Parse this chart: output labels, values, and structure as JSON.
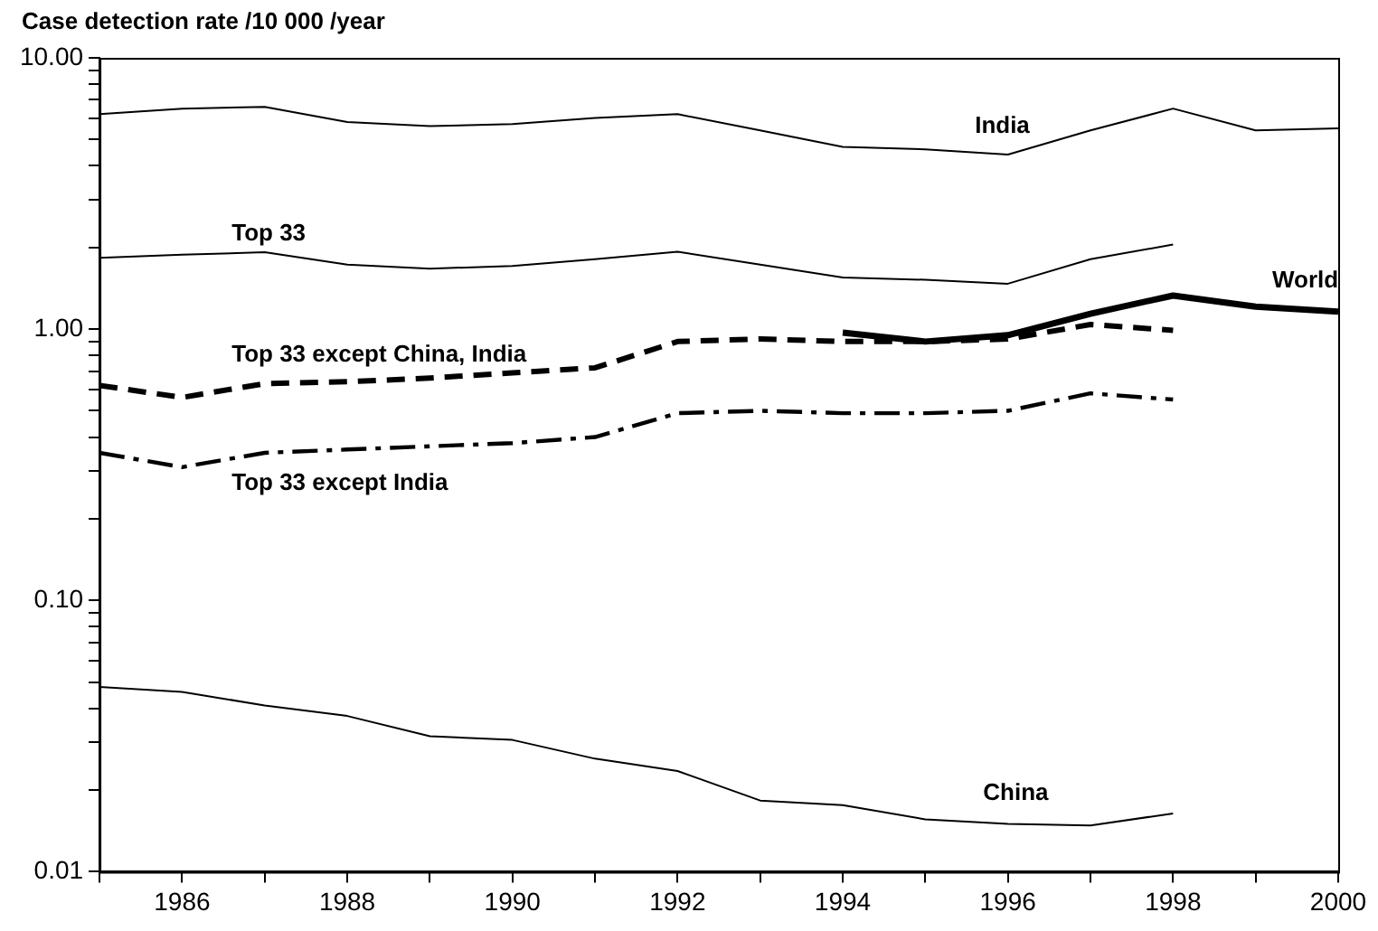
{
  "chart_data": {
    "type": "line",
    "ylabel": "Case detection rate /10 000 /year",
    "x": [
      1985,
      1986,
      1987,
      1988,
      1989,
      1990,
      1991,
      1992,
      1993,
      1994,
      1995,
      1996,
      1997,
      1998,
      1999,
      2000
    ],
    "log": true,
    "grid": false,
    "legend": false,
    "marker": "none",
    "xlim": [
      1985,
      2000
    ],
    "xticks": [
      {
        "value": 1985,
        "label": null
      },
      1986,
      {
        "value": 1987,
        "label": null
      },
      1988,
      {
        "value": 1989,
        "label": null
      },
      1990,
      {
        "value": 1991,
        "label": null
      },
      1992,
      {
        "value": 1993,
        "label": null
      },
      1994,
      {
        "value": 1995,
        "label": null
      },
      1996,
      {
        "value": 1997,
        "label": null
      },
      1998,
      {
        "value": 1999,
        "label": null
      },
      2000
    ],
    "ylim": [
      0.01,
      10
    ],
    "yticks": [
      {
        "value": 0.01,
        "label": "0.01"
      },
      {
        "value": 0.02,
        "label": null
      },
      {
        "value": 0.03,
        "label": null
      },
      {
        "value": 0.04,
        "label": null
      },
      {
        "value": 0.05,
        "label": null
      },
      {
        "value": 0.06,
        "label": null
      },
      {
        "value": 0.07,
        "label": null
      },
      {
        "value": 0.08,
        "label": null
      },
      {
        "value": 0.09,
        "label": null
      },
      {
        "value": 0.1,
        "label": "0.10"
      },
      {
        "value": 0.2,
        "label": null
      },
      {
        "value": 0.3,
        "label": null
      },
      {
        "value": 0.4,
        "label": null
      },
      {
        "value": 0.5,
        "label": null
      },
      {
        "value": 0.6,
        "label": null
      },
      {
        "value": 0.7,
        "label": null
      },
      {
        "value": 0.8,
        "label": null
      },
      {
        "value": 0.9,
        "label": null
      },
      {
        "value": 1,
        "label": "1.00"
      },
      {
        "value": 2,
        "label": null
      },
      {
        "value": 3,
        "label": null
      },
      {
        "value": 4,
        "label": null
      },
      {
        "value": 5,
        "label": null
      },
      {
        "value": 6,
        "label": null
      },
      {
        "value": 7,
        "label": null
      },
      {
        "value": 8,
        "label": null
      },
      {
        "value": 9,
        "label": null
      },
      {
        "value": 10,
        "label": "10.00"
      }
    ],
    "series": [
      {
        "name": "India",
        "color": "#000000",
        "line_style": "solid",
        "values": [
          6.2,
          6.5,
          6.6,
          5.8,
          5.6,
          5.7,
          6.0,
          6.2,
          5.4,
          4.7,
          4.6,
          4.4,
          5.4,
          6.5,
          5.4,
          5.5
        ]
      },
      {
        "name": "Top 33",
        "color": "#000000",
        "line_style": "solid",
        "values": [
          1.83,
          1.88,
          1.92,
          1.73,
          1.67,
          1.71,
          1.81,
          1.93,
          1.73,
          1.55,
          1.52,
          1.47,
          1.81,
          2.05,
          null,
          null
        ]
      },
      {
        "name": "World",
        "color": "#000000",
        "line_style": "solid",
        "values": [
          null,
          null,
          null,
          null,
          null,
          null,
          null,
          null,
          null,
          0.97,
          0.9,
          0.95,
          1.14,
          1.33,
          1.21,
          1.16
        ]
      },
      {
        "name": "Top 33 except China, India",
        "color": "#000000",
        "line_style": "dashed",
        "values": [
          0.62,
          0.56,
          0.63,
          0.64,
          0.66,
          0.69,
          0.72,
          0.9,
          0.92,
          0.9,
          0.9,
          0.92,
          1.04,
          0.99,
          null,
          null
        ]
      },
      {
        "name": "Top 33 except India",
        "color": "#000000",
        "line_style": "dashdot",
        "values": [
          0.35,
          0.31,
          0.35,
          0.36,
          0.37,
          0.38,
          0.4,
          0.49,
          0.5,
          0.49,
          0.49,
          0.5,
          0.58,
          0.55,
          null,
          null
        ]
      },
      {
        "name": "China",
        "color": "#000000",
        "line_style": "solid",
        "values": [
          0.048,
          0.046,
          0.041,
          0.0375,
          0.0316,
          0.0306,
          0.0261,
          0.0235,
          0.0183,
          0.0176,
          0.0156,
          0.015,
          0.0148,
          0.0164,
          null,
          null
        ]
      }
    ]
  }
}
